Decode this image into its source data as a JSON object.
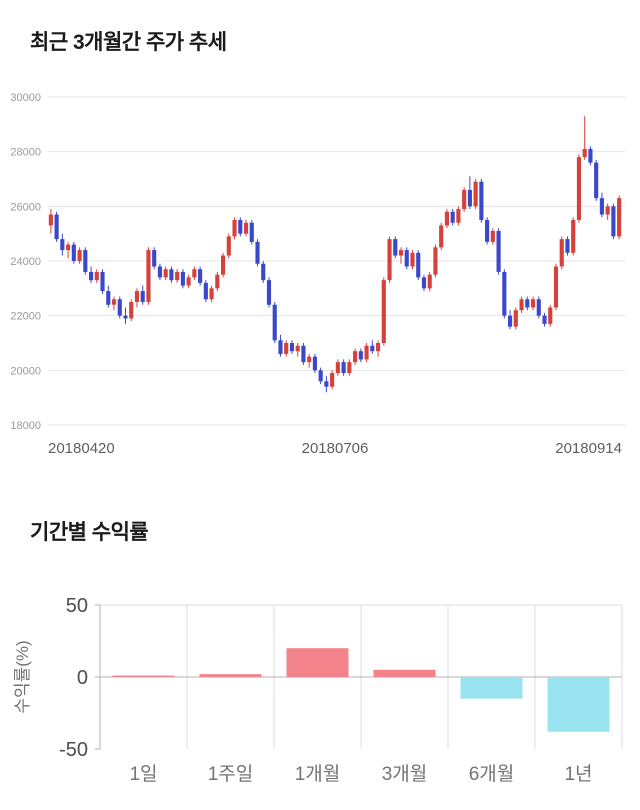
{
  "chart_data": [
    {
      "type": "candlestick",
      "title": "최근 3개월간 주가 추세",
      "ylabel": "",
      "xlabel": "",
      "ylim": [
        18000,
        30000
      ],
      "y_ticks": [
        30000,
        28000,
        26000,
        24000,
        22000,
        20000,
        18000
      ],
      "x_ticks": [
        "20180420",
        "20180706",
        "20180914"
      ],
      "grid": true,
      "up_color": "#d6413c",
      "down_color": "#3a49cc",
      "grid_color": "#e4e4e4",
      "tick_color": "#9a9a9a",
      "date_color": "#5f5f5f",
      "ohlc": [
        [
          25300,
          25900,
          25000,
          25700
        ],
        [
          25700,
          25800,
          24700,
          24800
        ],
        [
          24800,
          25000,
          24200,
          24400
        ],
        [
          24400,
          24700,
          24100,
          24600
        ],
        [
          24600,
          24700,
          23900,
          24000
        ],
        [
          24000,
          24500,
          23900,
          24400
        ],
        [
          24400,
          24500,
          23500,
          23600
        ],
        [
          23600,
          23800,
          23200,
          23300
        ],
        [
          23300,
          23700,
          23200,
          23600
        ],
        [
          23600,
          23700,
          22800,
          22900
        ],
        [
          22900,
          23100,
          22300,
          22400
        ],
        [
          22400,
          22700,
          22200,
          22600
        ],
        [
          22600,
          22700,
          21900,
          22000
        ],
        [
          22000,
          22300,
          21700,
          21900
        ],
        [
          21900,
          22600,
          21800,
          22500
        ],
        [
          22500,
          23000,
          22300,
          22900
        ],
        [
          22900,
          23100,
          22400,
          22500
        ],
        [
          22500,
          24500,
          22400,
          24400
        ],
        [
          24400,
          24500,
          23700,
          23800
        ],
        [
          23800,
          23900,
          23300,
          23400
        ],
        [
          23400,
          23800,
          23300,
          23700
        ],
        [
          23700,
          23800,
          23200,
          23300
        ],
        [
          23300,
          23700,
          23200,
          23600
        ],
        [
          23600,
          23700,
          23000,
          23100
        ],
        [
          23100,
          23500,
          23000,
          23400
        ],
        [
          23400,
          23800,
          23300,
          23700
        ],
        [
          23700,
          23800,
          23100,
          23200
        ],
        [
          23200,
          23300,
          22500,
          22600
        ],
        [
          22600,
          23100,
          22500,
          23000
        ],
        [
          23000,
          23600,
          22900,
          23500
        ],
        [
          23500,
          24300,
          23400,
          24200
        ],
        [
          24200,
          25000,
          24100,
          24900
        ],
        [
          24900,
          25600,
          24800,
          25500
        ],
        [
          25500,
          25600,
          24900,
          25000
        ],
        [
          25000,
          25500,
          24900,
          25400
        ],
        [
          25400,
          25500,
          24600,
          24700
        ],
        [
          24700,
          24800,
          23800,
          23900
        ],
        [
          23900,
          24000,
          23200,
          23300
        ],
        [
          23300,
          23400,
          22300,
          22400
        ],
        [
          22400,
          22500,
          21000,
          21100
        ],
        [
          21100,
          21300,
          20500,
          20600
        ],
        [
          20600,
          21100,
          20500,
          21000
        ],
        [
          21000,
          21100,
          20600,
          20700
        ],
        [
          20700,
          21000,
          20500,
          20900
        ],
        [
          20900,
          21000,
          20200,
          20300
        ],
        [
          20300,
          20600,
          20100,
          20500
        ],
        [
          20500,
          20600,
          19900,
          20000
        ],
        [
          20000,
          20100,
          19500,
          19600
        ],
        [
          19600,
          19800,
          19200,
          19400
        ],
        [
          19400,
          20000,
          19300,
          19900
        ],
        [
          19900,
          20400,
          19800,
          20300
        ],
        [
          20300,
          20400,
          19800,
          19900
        ],
        [
          19900,
          20400,
          19800,
          20300
        ],
        [
          20300,
          20800,
          20200,
          20700
        ],
        [
          20700,
          20800,
          20300,
          20400
        ],
        [
          20400,
          21000,
          20300,
          20900
        ],
        [
          20900,
          21100,
          20600,
          20700
        ],
        [
          20700,
          21100,
          20500,
          21000
        ],
        [
          21000,
          23400,
          20900,
          23300
        ],
        [
          23300,
          24900,
          23200,
          24800
        ],
        [
          24800,
          24900,
          24100,
          24200
        ],
        [
          24200,
          24500,
          23900,
          24400
        ],
        [
          24400,
          24500,
          23700,
          23800
        ],
        [
          23800,
          24400,
          23700,
          24300
        ],
        [
          24300,
          24400,
          23300,
          23400
        ],
        [
          23400,
          23500,
          22900,
          23000
        ],
        [
          23000,
          23600,
          22900,
          23500
        ],
        [
          23500,
          24600,
          23400,
          24500
        ],
        [
          24500,
          25400,
          24400,
          25300
        ],
        [
          25300,
          25900,
          25200,
          25800
        ],
        [
          25800,
          25900,
          25300,
          25400
        ],
        [
          25400,
          26000,
          25300,
          25900
        ],
        [
          25900,
          26700,
          25800,
          26600
        ],
        [
          26600,
          27100,
          25900,
          26000
        ],
        [
          26000,
          27000,
          25900,
          26900
        ],
        [
          26900,
          27000,
          25400,
          25500
        ],
        [
          25500,
          25600,
          24600,
          24700
        ],
        [
          24700,
          25200,
          24600,
          25100
        ],
        [
          25100,
          25200,
          23500,
          23600
        ],
        [
          23600,
          23700,
          21900,
          22000
        ],
        [
          22000,
          22200,
          21500,
          21600
        ],
        [
          21600,
          22300,
          21500,
          22200
        ],
        [
          22200,
          22700,
          22100,
          22600
        ],
        [
          22600,
          22700,
          22200,
          22300
        ],
        [
          22300,
          22700,
          22200,
          22600
        ],
        [
          22600,
          22700,
          21900,
          22000
        ],
        [
          22000,
          22100,
          21600,
          21700
        ],
        [
          21700,
          22400,
          21600,
          22300
        ],
        [
          22300,
          23900,
          22200,
          23800
        ],
        [
          23800,
          24900,
          23700,
          24800
        ],
        [
          24800,
          24900,
          24200,
          24300
        ],
        [
          24300,
          25600,
          24200,
          25500
        ],
        [
          25500,
          27900,
          25400,
          27800
        ],
        [
          27800,
          29300,
          27700,
          28100
        ],
        [
          28100,
          28200,
          27500,
          27600
        ],
        [
          27600,
          27700,
          26200,
          26300
        ],
        [
          26300,
          26500,
          25600,
          25700
        ],
        [
          25700,
          26100,
          25500,
          26000
        ],
        [
          26000,
          26100,
          24800,
          24900
        ],
        [
          24900,
          26400,
          24800,
          26300
        ]
      ]
    },
    {
      "type": "bar",
      "title": "기간별 수익률",
      "ylabel": "수익률(%)",
      "xlabel": "",
      "ylim": [
        -50,
        50
      ],
      "y_ticks": [
        50,
        0,
        -50
      ],
      "grid": true,
      "categories": [
        "1일",
        "1주일",
        "1개월",
        "3개월",
        "6개월",
        "1년"
      ],
      "values": [
        1,
        2,
        20,
        5,
        -15,
        -38
      ],
      "positive_color": "#f2838b",
      "negative_color": "#99e3f0",
      "grid_color": "#dddddd",
      "axis_color": "#b3b3b3",
      "tick_color": "#4d4d4d",
      "cat_color": "#737373"
    }
  ]
}
